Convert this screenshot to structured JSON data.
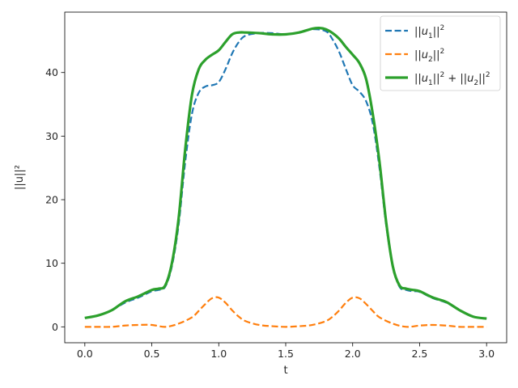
{
  "chart_data": {
    "type": "line",
    "title": "",
    "xlabel": "t",
    "ylabel": "||u||²",
    "xlim": [
      -0.15,
      3.15
    ],
    "ylim": [
      -2.5,
      49.5
    ],
    "xticks": [
      0.0,
      0.5,
      1.0,
      1.5,
      2.0,
      2.5,
      3.0
    ],
    "xtick_labels": [
      "0.0",
      "0.5",
      "1.0",
      "1.5",
      "2.0",
      "2.5",
      "3.0"
    ],
    "yticks": [
      0,
      10,
      20,
      30,
      40
    ],
    "ytick_labels": [
      "0",
      "10",
      "20",
      "30",
      "40"
    ],
    "grid": false,
    "legend_position": "top-right",
    "legend": [
      {
        "base": "||u",
        "sub": "1",
        "tail": "||",
        "sup": "2"
      },
      {
        "base": "||u",
        "sub": "2",
        "tail": "||",
        "sup": "2"
      },
      {
        "base": "||u",
        "sub": "1",
        "tail": "||",
        "sup": "2",
        "plus": " + ||u",
        "sub2": "2",
        "tail2": "||",
        "sup2": "2"
      }
    ],
    "series": [
      {
        "color": "#1f77b4",
        "style": "dashed",
        "width": 2.2,
        "x": [
          0.0,
          0.1,
          0.2,
          0.3,
          0.4,
          0.5,
          0.55,
          0.6,
          0.65,
          0.7,
          0.75,
          0.8,
          0.85,
          0.9,
          0.95,
          1.0,
          1.05,
          1.1,
          1.15,
          1.2,
          1.3,
          1.4,
          1.5,
          1.6,
          1.7,
          1.8,
          1.85,
          1.9,
          1.95,
          2.0,
          2.05,
          2.1,
          2.15,
          2.2,
          2.25,
          2.3,
          2.35,
          2.4,
          2.45,
          2.5,
          2.6,
          2.7,
          2.8,
          2.9,
          3.0
        ],
        "y": [
          1.4,
          1.8,
          2.6,
          3.8,
          4.6,
          5.6,
          5.8,
          6.3,
          9.5,
          16.0,
          26.0,
          33.5,
          36.8,
          37.8,
          38.0,
          38.5,
          40.5,
          43.0,
          44.8,
          45.8,
          46.2,
          46.2,
          46.0,
          46.3,
          46.8,
          46.5,
          45.2,
          43.2,
          40.5,
          38.0,
          37.0,
          35.5,
          32.0,
          25.0,
          16.0,
          9.5,
          6.3,
          5.8,
          5.6,
          5.5,
          4.5,
          3.8,
          2.6,
          1.6,
          1.3
        ]
      },
      {
        "color": "#ff7f0e",
        "style": "dashed",
        "width": 2.2,
        "x": [
          0.0,
          0.1,
          0.2,
          0.3,
          0.4,
          0.5,
          0.6,
          0.7,
          0.8,
          0.85,
          0.9,
          0.95,
          1.0,
          1.05,
          1.1,
          1.15,
          1.2,
          1.3,
          1.4,
          1.5,
          1.6,
          1.7,
          1.8,
          1.85,
          1.9,
          1.95,
          2.0,
          2.05,
          2.1,
          2.15,
          2.2,
          2.3,
          2.4,
          2.5,
          2.6,
          2.7,
          2.8,
          2.9,
          3.0
        ],
        "y": [
          0.0,
          0.0,
          0.0,
          0.2,
          0.3,
          0.3,
          0.0,
          0.5,
          1.5,
          2.5,
          3.6,
          4.5,
          4.6,
          3.8,
          2.6,
          1.6,
          0.9,
          0.3,
          0.1,
          0.0,
          0.1,
          0.3,
          0.9,
          1.6,
          2.6,
          3.8,
          4.6,
          4.5,
          3.6,
          2.5,
          1.5,
          0.5,
          0.0,
          0.2,
          0.3,
          0.2,
          0.0,
          0.0,
          0.0
        ]
      },
      {
        "color": "#2ca02c",
        "style": "solid",
        "width": 3.2,
        "x": [
          0.0,
          0.1,
          0.2,
          0.3,
          0.4,
          0.5,
          0.55,
          0.6,
          0.65,
          0.7,
          0.75,
          0.8,
          0.85,
          0.9,
          0.95,
          1.0,
          1.05,
          1.1,
          1.15,
          1.2,
          1.3,
          1.4,
          1.5,
          1.6,
          1.7,
          1.75,
          1.8,
          1.85,
          1.9,
          1.95,
          2.0,
          2.05,
          2.1,
          2.15,
          2.2,
          2.25,
          2.3,
          2.35,
          2.4,
          2.45,
          2.5,
          2.6,
          2.7,
          2.8,
          2.9,
          3.0
        ],
        "y": [
          1.4,
          1.8,
          2.6,
          4.0,
          4.8,
          5.8,
          6.0,
          6.5,
          10.0,
          17.0,
          28.0,
          36.5,
          40.5,
          42.0,
          42.8,
          43.5,
          44.8,
          46.0,
          46.3,
          46.3,
          46.2,
          46.0,
          46.0,
          46.3,
          46.9,
          47.0,
          46.8,
          46.2,
          45.3,
          44.0,
          42.8,
          41.5,
          39.0,
          33.5,
          26.0,
          16.5,
          9.5,
          6.5,
          6.0,
          5.8,
          5.6,
          4.6,
          3.9,
          2.6,
          1.6,
          1.3
        ]
      }
    ]
  }
}
